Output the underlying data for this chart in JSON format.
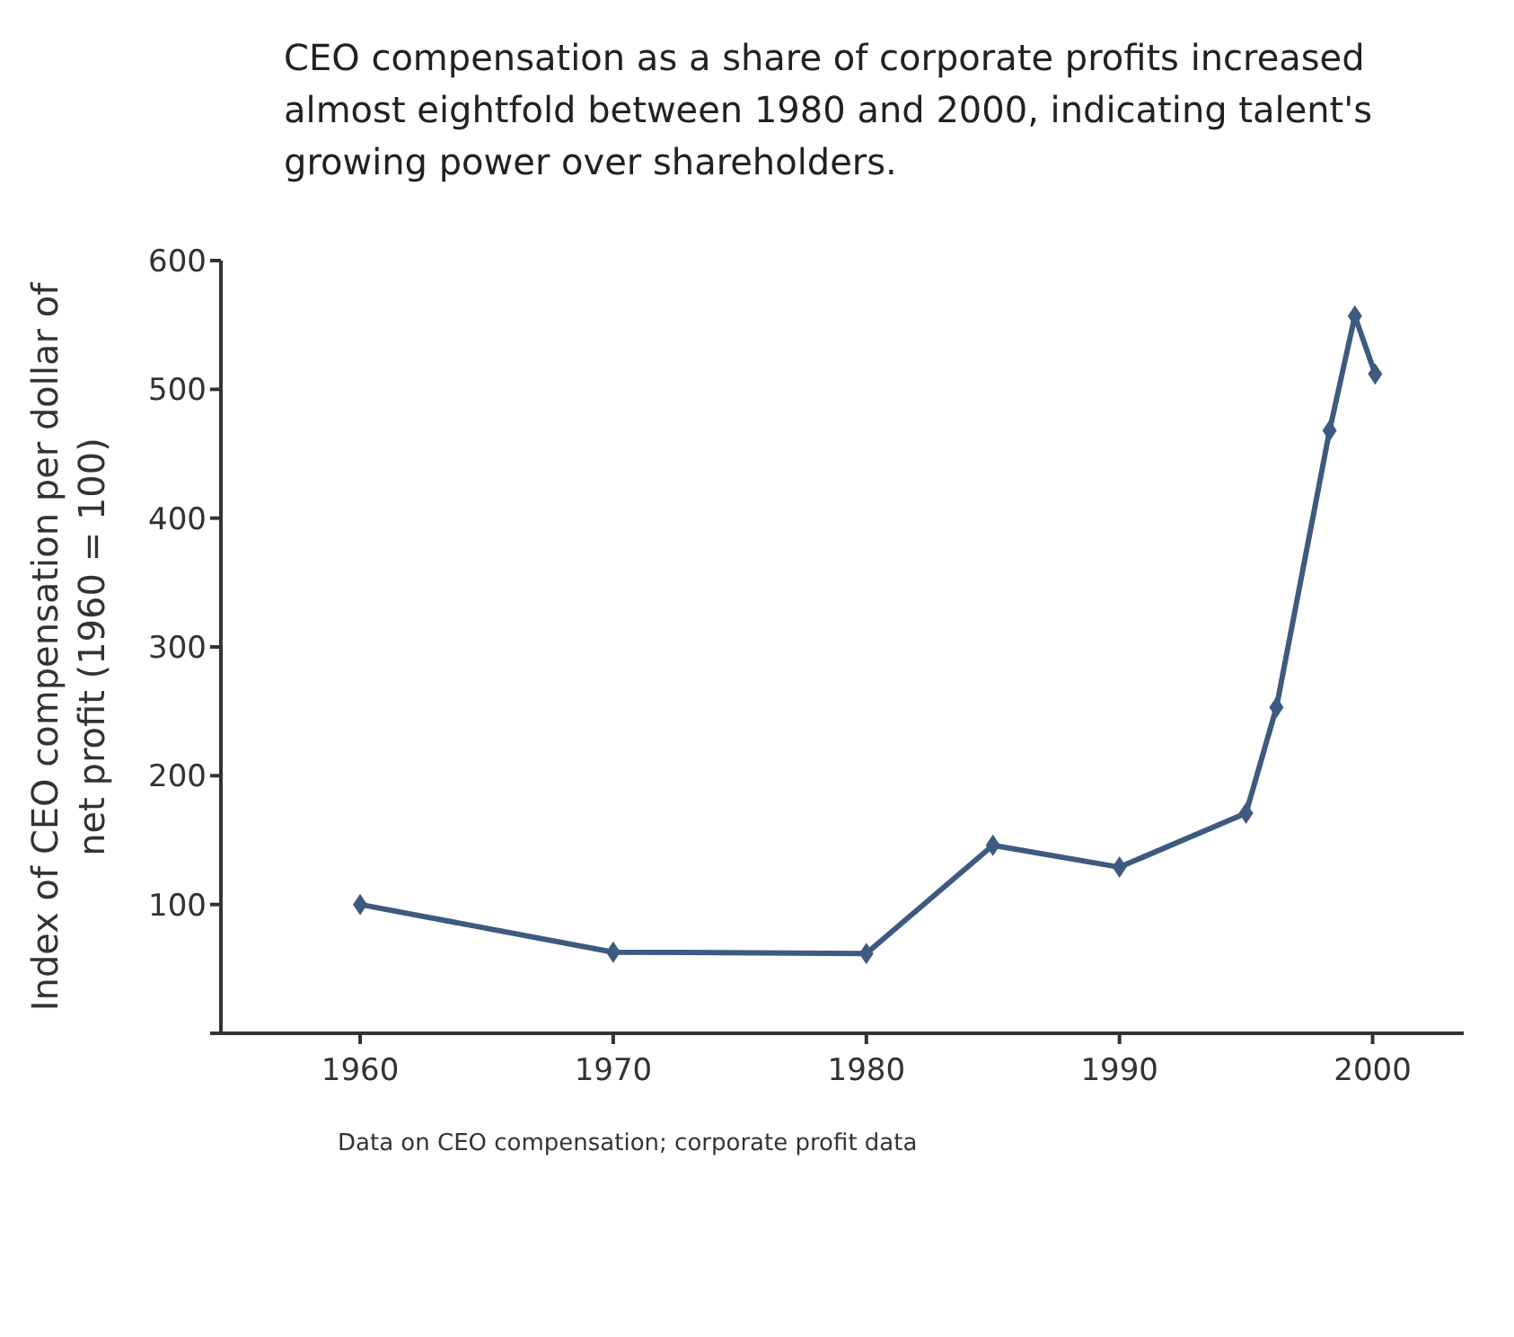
{
  "chart_data": {
    "type": "line",
    "title": "CEO compensation as a share of corporate profits increased almost eightfold between 1980 and 2000, indicating talent's growing power over shareholders.",
    "ylabel": "Index of CEO compensation per dollar of net profit (1960 = 100)",
    "x": [
      1960,
      1970,
      1980,
      1985,
      1990,
      1995,
      1996.2,
      1998.3,
      1999.3,
      2000.1
    ],
    "series": [
      {
        "color": "#3d5a80",
        "values": [
          100,
          63,
          62,
          146,
          129,
          171,
          253,
          468,
          557,
          512
        ]
      }
    ],
    "xlim": [
      1954.5,
      2003.6
    ],
    "xticks": [
      1960,
      1970,
      1980,
      1990,
      2000
    ],
    "ylim": [
      0,
      600
    ],
    "yticks": [
      {
        "value": 0,
        "label": null
      },
      100,
      200,
      300,
      400,
      500,
      600
    ],
    "marker": "diamond",
    "grid": false,
    "legend": false,
    "annotations": [
      "Data on CEO compensation; corporate profit data"
    ]
  }
}
